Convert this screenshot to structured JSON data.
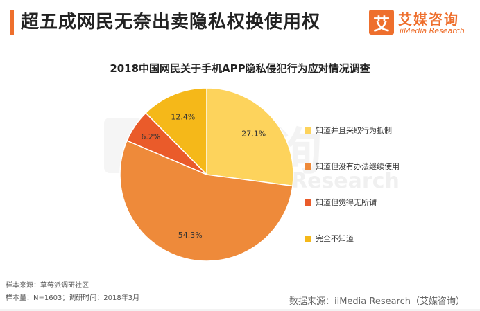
{
  "header": {
    "title": "超五成网民无奈出卖隐私权换使用权",
    "accent_color": "#ee6f2d"
  },
  "logo": {
    "icon_char": "艾",
    "name_cn": "艾媒咨询",
    "name_en": "iiMedia Research"
  },
  "chart_data": {
    "type": "pie",
    "title": "2018中国网民关于手机APP隐私侵犯行为应对情况调查",
    "start_angle_deg": 0,
    "direction": "clockwise",
    "slices": [
      {
        "label": "知道并且采取行为抵制",
        "value": 27.1,
        "value_label": "27.1%",
        "color": "#fdd35c"
      },
      {
        "label": "知道但没有办法继续使用",
        "value": 54.3,
        "value_label": "54.3%",
        "color": "#ee8a3a"
      },
      {
        "label": "知道但觉得无所谓",
        "value": 6.2,
        "value_label": "6.2%",
        "color": "#ea5b2a"
      },
      {
        "label": "完全不知道",
        "value": 12.4,
        "value_label": "12.4%",
        "color": "#f5b819"
      }
    ]
  },
  "footer": {
    "source_line": "样本来源：草莓派调研社区",
    "sample_line": "样本量：N=1603；调研时间：2018年3月",
    "data_source": "数据来源：iiMedia Research（艾媒咨询）"
  }
}
